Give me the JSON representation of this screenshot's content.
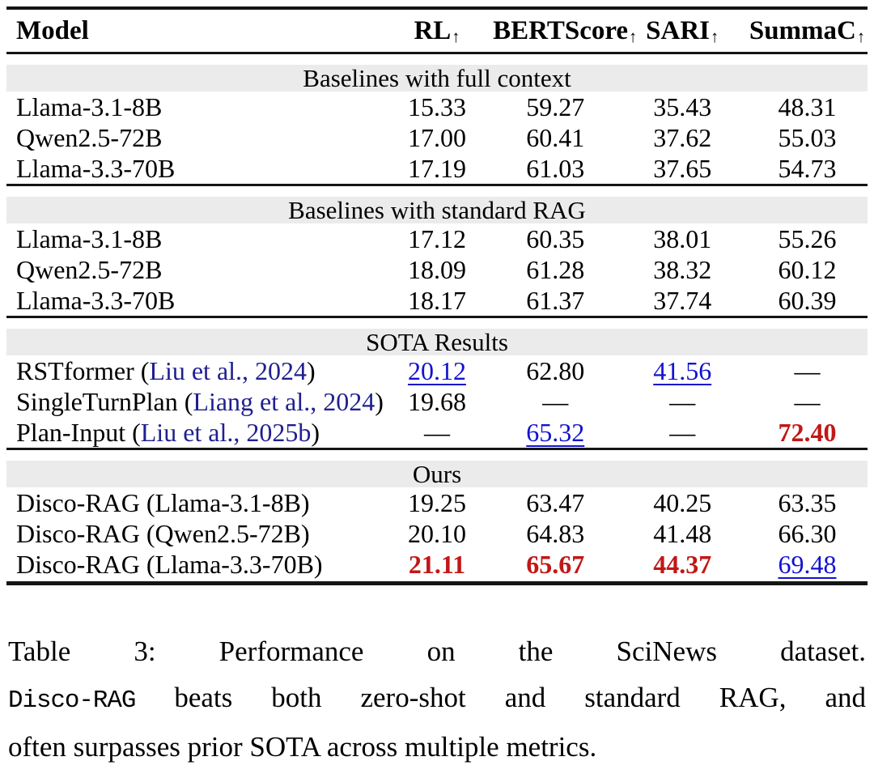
{
  "table": {
    "header": {
      "model_label": "Model",
      "metrics": [
        {
          "name": "RL",
          "arrow": "↑"
        },
        {
          "name": "BERTScore",
          "arrow": "↑"
        },
        {
          "name": "SARI",
          "arrow": "↑"
        },
        {
          "name": "SummaC",
          "arrow": "↑"
        }
      ]
    },
    "sections": [
      {
        "title": "Baselines with full context",
        "rows": [
          {
            "model": "Llama-3.1-8B",
            "values": [
              "15.33",
              "59.27",
              "35.43",
              "48.31"
            ]
          },
          {
            "model": "Qwen2.5-72B",
            "values": [
              "17.00",
              "60.41",
              "37.62",
              "55.03"
            ]
          },
          {
            "model": "Llama-3.3-70B",
            "values": [
              "17.19",
              "61.03",
              "37.65",
              "54.73"
            ]
          }
        ]
      },
      {
        "title": "Baselines with standard RAG",
        "rows": [
          {
            "model": "Llama-3.1-8B",
            "values": [
              "17.12",
              "60.35",
              "38.01",
              "55.26"
            ]
          },
          {
            "model": "Qwen2.5-72B",
            "values": [
              "18.09",
              "61.28",
              "38.32",
              "60.12"
            ]
          },
          {
            "model": "Llama-3.3-70B",
            "values": [
              "18.17",
              "61.37",
              "37.74",
              "60.39"
            ]
          }
        ]
      },
      {
        "title": "SOTA Results",
        "rows": [
          {
            "model_pre": "RSTformer (",
            "model_cite": "Liu et al., 2024",
            "model_post": ")",
            "values": [
              "20.12",
              "62.80",
              "41.56",
              "—"
            ]
          },
          {
            "model_pre": "SingleTurnPlan (",
            "model_cite": "Liang et al., 2024",
            "model_post": ")",
            "values": [
              "19.68",
              "—",
              "—",
              "—"
            ]
          },
          {
            "model_pre": "Plan-Input (",
            "model_cite": "Liu et al., 2025b",
            "model_post": ")",
            "values": [
              "—",
              "65.32",
              "—",
              "72.40"
            ]
          }
        ]
      },
      {
        "title": "Ours",
        "rows": [
          {
            "model": "Disco-RAG (Llama-3.1-8B)",
            "values": [
              "19.25",
              "63.47",
              "40.25",
              "63.35"
            ]
          },
          {
            "model": "Disco-RAG (Qwen2.5-72B)",
            "values": [
              "20.10",
              "64.83",
              "41.48",
              "66.30"
            ]
          },
          {
            "model": "Disco-RAG (Llama-3.3-70B)",
            "values": [
              "21.11",
              "65.67",
              "44.37",
              "69.48"
            ]
          }
        ]
      }
    ]
  },
  "caption": {
    "label": "Table 3:",
    "line1_rest": "Performance on the SciNews dataset.",
    "line2_mono": "Disco-RAG",
    "line2_rest": "beats both zero-shot and standard RAG, and",
    "line3": "often surpasses prior SOTA across multiple metrics."
  },
  "colors": {
    "best_value": "#c21717",
    "second_best_link": "#1212cf",
    "citation": "#1f1f8f",
    "section_band_bg": "#ebebeb",
    "rule": "#141414"
  }
}
